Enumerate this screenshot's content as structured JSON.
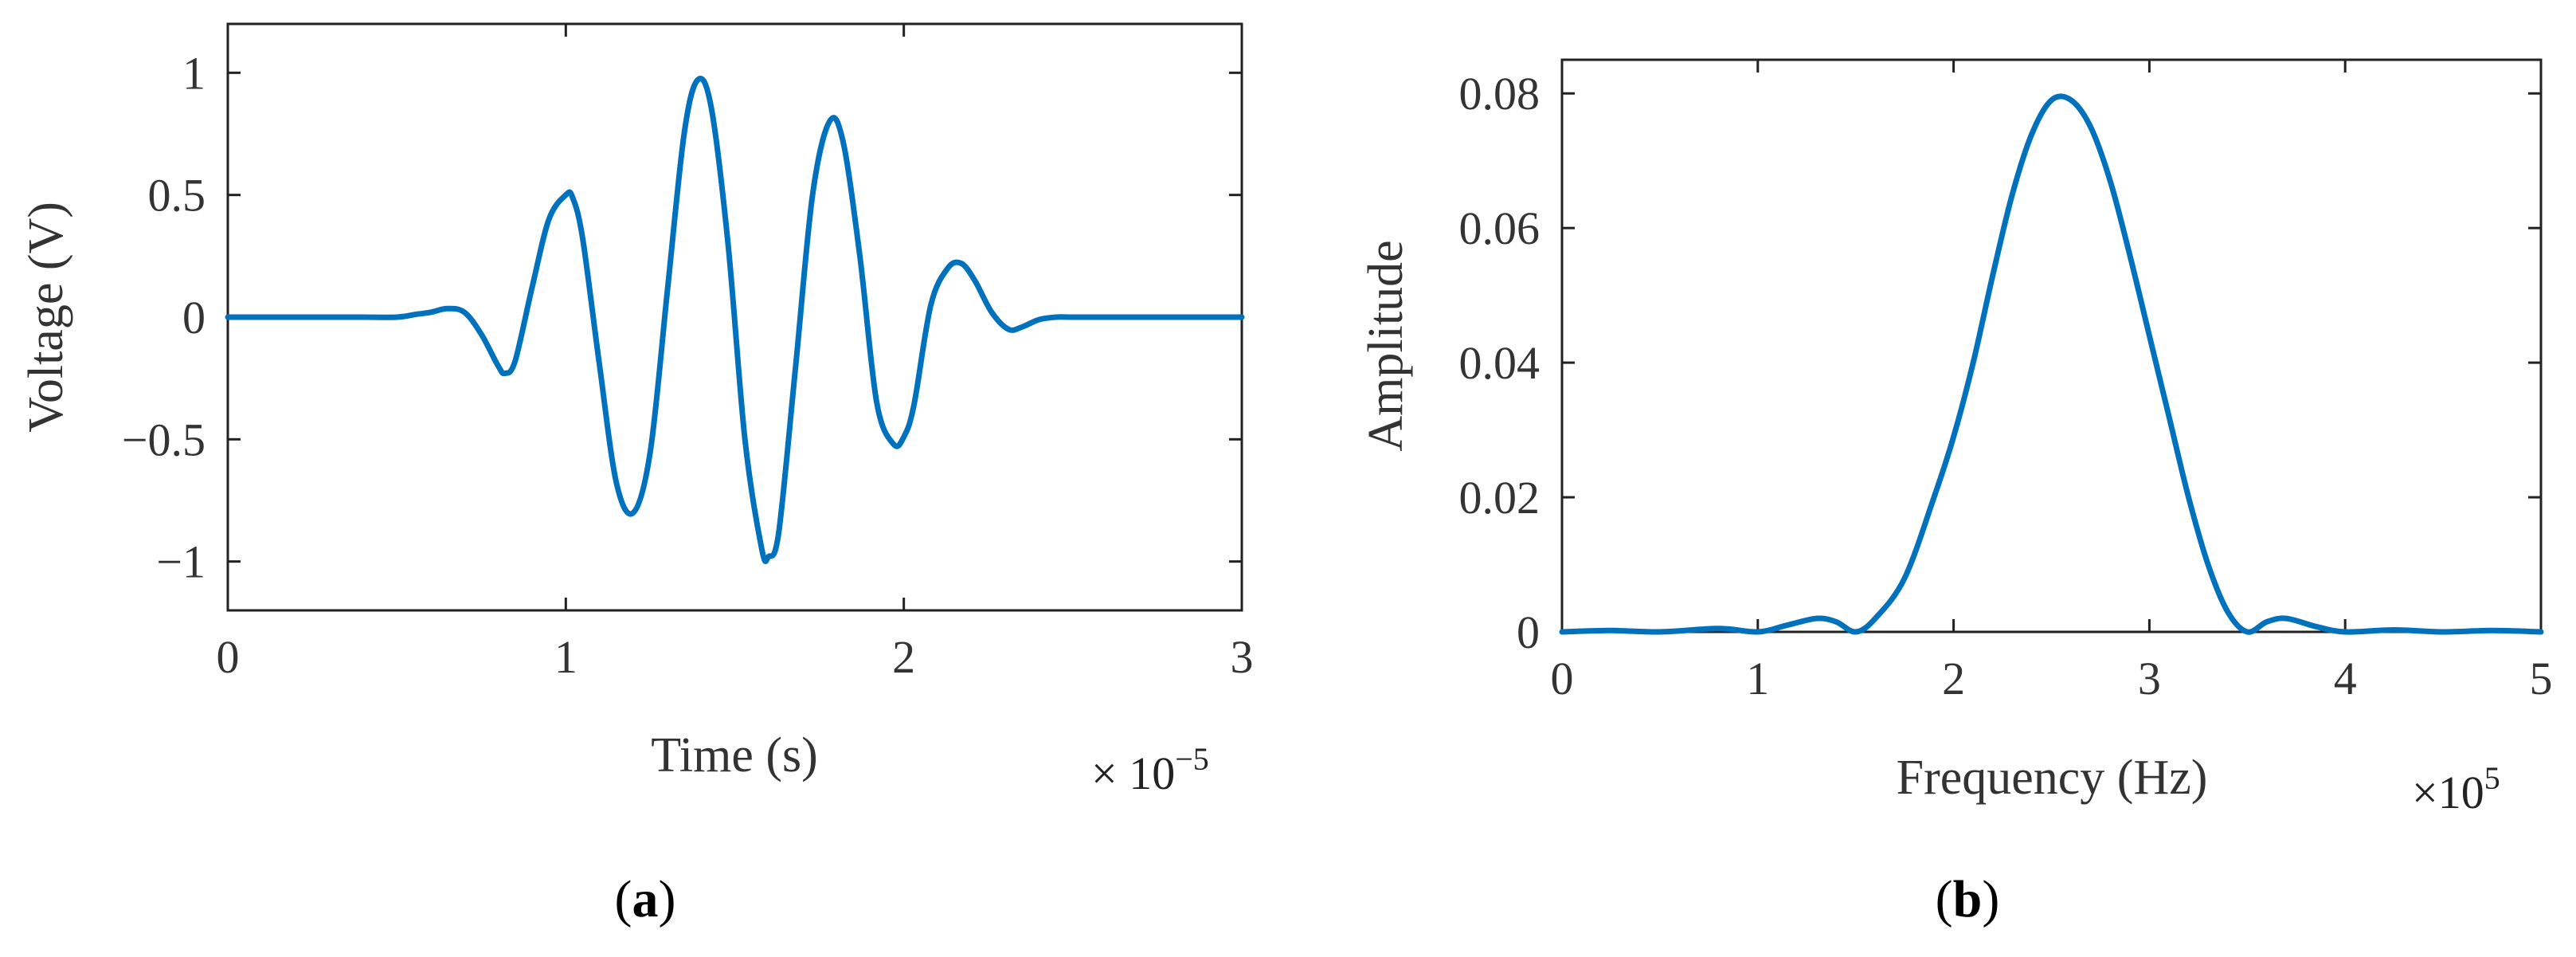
{
  "chart_data": [
    {
      "type": "line",
      "panel_label": "a",
      "title": "",
      "xlabel": "Time (s)",
      "ylabel": "Voltage (V)",
      "x_exponent_label": "× 10",
      "x_exponent_power": "−5",
      "xlim": [
        0,
        3
      ],
      "ylim": [
        -1.2,
        1.2
      ],
      "xticks": [
        0,
        1,
        2,
        3
      ],
      "xtick_labels": [
        "0",
        "1",
        "2",
        "3"
      ],
      "yticks": [
        -1,
        -0.5,
        0,
        0.5,
        1
      ],
      "ytick_labels": [
        "−1",
        "−0.5",
        "0",
        "0.5",
        "1"
      ],
      "grid": false,
      "legend": "none",
      "color": "#0072BD",
      "series": [
        {
          "x": [
            0,
            0.1,
            0.2,
            0.3,
            0.4,
            0.5,
            0.55,
            0.6,
            0.65,
            0.7,
            0.75,
            0.8,
            0.82,
            0.85,
            0.9,
            0.95,
            1.0,
            1.02,
            1.05,
            1.1,
            1.15,
            1.2,
            1.25,
            1.3,
            1.35,
            1.39,
            1.43,
            1.48,
            1.53,
            1.58,
            1.6,
            1.63,
            1.68,
            1.73,
            1.78,
            1.82,
            1.87,
            1.92,
            1.97,
            2.0,
            2.03,
            2.08,
            2.13,
            2.17,
            2.21,
            2.26,
            2.31,
            2.35,
            2.4,
            2.45,
            2.5,
            2.6,
            2.7,
            2.8,
            2.9,
            3.0
          ],
          "values": [
            0,
            0,
            0,
            0,
            0,
            0,
            0.01,
            0.02,
            0.035,
            0.02,
            -0.07,
            -0.2,
            -0.23,
            -0.18,
            0.12,
            0.4,
            0.5,
            0.49,
            0.32,
            -0.2,
            -0.68,
            -0.8,
            -0.55,
            0.1,
            0.75,
            0.97,
            0.86,
            0.3,
            -0.5,
            -0.95,
            -0.98,
            -0.88,
            -0.2,
            0.5,
            0.8,
            0.72,
            0.25,
            -0.35,
            -0.52,
            -0.49,
            -0.36,
            0.05,
            0.2,
            0.22,
            0.15,
            0.02,
            -0.05,
            -0.04,
            -0.01,
            0,
            0,
            0,
            0,
            0,
            0,
            0
          ]
        }
      ]
    },
    {
      "type": "line",
      "panel_label": "b",
      "title": "",
      "xlabel": "Frequency (Hz)",
      "ylabel": "Amplitude",
      "x_exponent_label": "×10",
      "x_exponent_power": "5",
      "xlim": [
        0,
        5
      ],
      "ylim": [
        0,
        0.085
      ],
      "xticks": [
        0,
        1,
        2,
        3,
        4,
        5
      ],
      "xtick_labels": [
        "0",
        "1",
        "2",
        "3",
        "4",
        "5"
      ],
      "yticks": [
        0,
        0.02,
        0.04,
        0.06,
        0.08
      ],
      "ytick_labels": [
        "0",
        "0.02",
        "0.04",
        "0.06",
        "0.08"
      ],
      "grid": false,
      "legend": "none",
      "color": "#0072BD",
      "series": [
        {
          "x": [
            0,
            0.25,
            0.5,
            0.8,
            1.0,
            1.15,
            1.3,
            1.4,
            1.5,
            1.6,
            1.75,
            1.9,
            2.0,
            2.1,
            2.2,
            2.3,
            2.4,
            2.5,
            2.6,
            2.7,
            2.8,
            2.9,
            3.0,
            3.1,
            3.2,
            3.3,
            3.4,
            3.5,
            3.6,
            3.7,
            3.85,
            4.0,
            4.25,
            4.5,
            4.75,
            5.0
          ],
          "values": [
            0,
            0.0002,
            0,
            0.0005,
            0,
            0.001,
            0.002,
            0.0015,
            0,
            0.002,
            0.008,
            0.02,
            0.029,
            0.04,
            0.053,
            0.065,
            0.074,
            0.079,
            0.079,
            0.075,
            0.067,
            0.056,
            0.044,
            0.032,
            0.02,
            0.01,
            0.003,
            0,
            0.0015,
            0.002,
            0.0008,
            0,
            0.0003,
            0,
            0.0002,
            0
          ]
        }
      ]
    }
  ]
}
